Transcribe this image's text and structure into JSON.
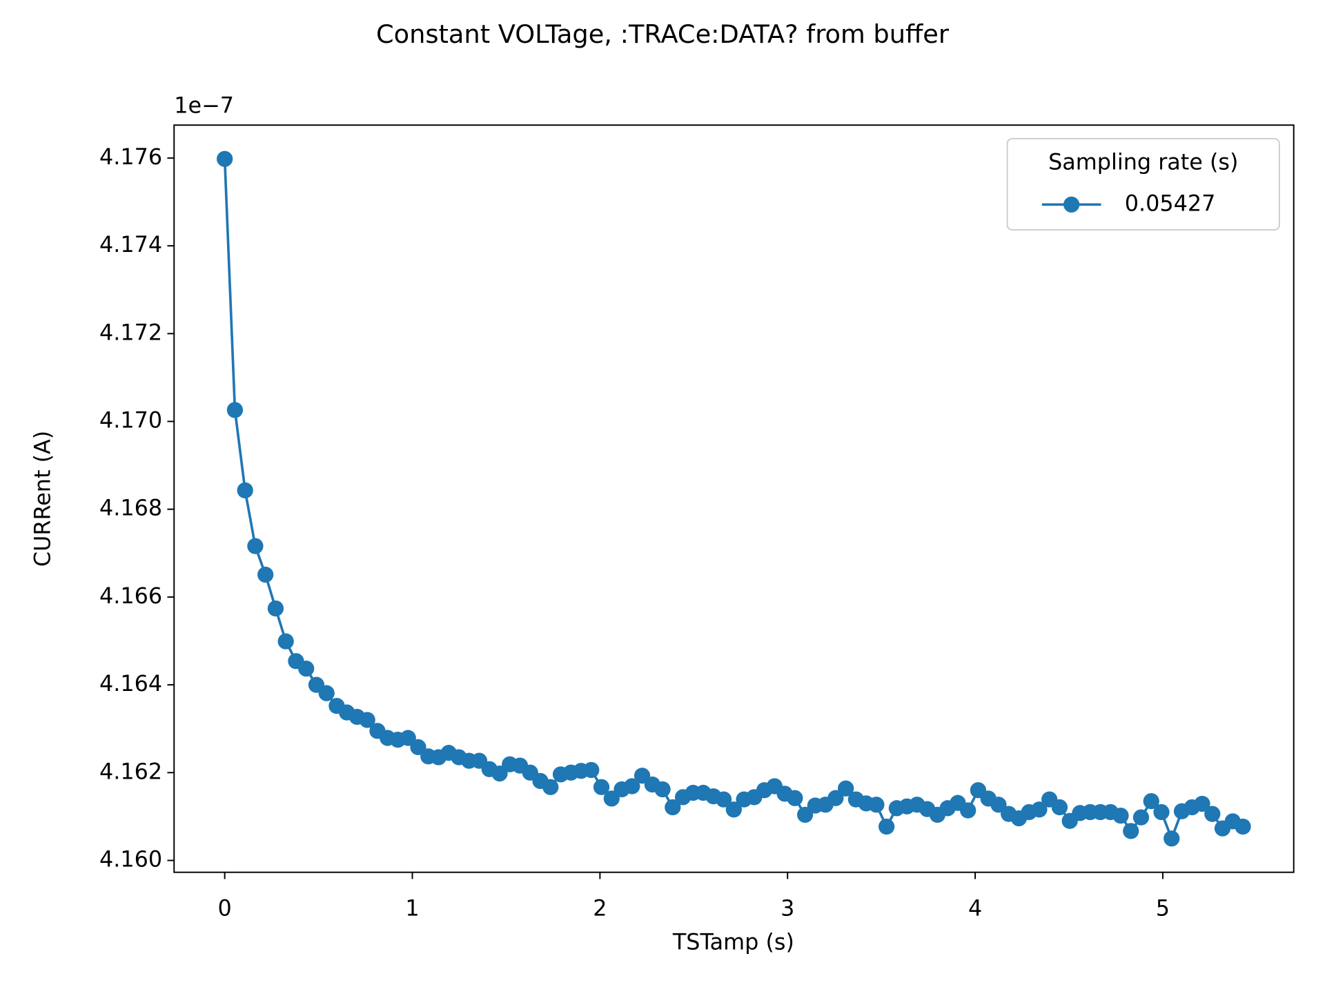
{
  "chart_data": {
    "type": "line",
    "title": "Constant VOLTage, :TRACe:DATA? from buffer",
    "x_label": "TSTamp (s)",
    "y_label": "CURRent (A)",
    "y_offset_label": "1e−7",
    "legend_title": "Sampling rate (s)",
    "legend": "upper right",
    "x": [
      0,
      0.05427,
      0.10854,
      0.16281,
      0.21708,
      0.27135,
      0.32562,
      0.37989,
      0.43416,
      0.48843,
      0.5427,
      0.59697,
      0.65124,
      0.70551,
      0.75978,
      0.81405,
      0.86832,
      0.92259,
      0.97686,
      1.03113,
      1.0854,
      1.13967,
      1.19394,
      1.24821,
      1.30248,
      1.35675,
      1.41102,
      1.46529,
      1.51956,
      1.57383,
      1.6281,
      1.68237,
      1.73664,
      1.79091,
      1.84518,
      1.89945,
      1.95372,
      2.00799,
      2.06226,
      2.11653,
      2.1708,
      2.22507,
      2.27934,
      2.33361,
      2.38788,
      2.44215,
      2.49642,
      2.55069,
      2.60496,
      2.65923,
      2.7135,
      2.76777,
      2.82204,
      2.87631,
      2.93058,
      2.98485,
      3.03912,
      3.09339,
      3.14766,
      3.20193,
      3.2562,
      3.31047,
      3.36474,
      3.41901,
      3.47328,
      3.52755,
      3.58182,
      3.63609,
      3.69036,
      3.74463,
      3.7989,
      3.85317,
      3.90744,
      3.96171,
      4.01598,
      4.07025,
      4.12452,
      4.17879,
      4.23306,
      4.28733,
      4.3416,
      4.39587,
      4.45014,
      4.50441,
      4.55868,
      4.61295,
      4.66722,
      4.72149,
      4.77576,
      4.83003,
      4.8843,
      4.93857,
      4.99284,
      5.04711,
      5.10138,
      5.15565,
      5.20992,
      5.26419,
      5.31846,
      5.37273,
      5.427
    ],
    "series": [
      {
        "name": "0.05427",
        "color": "#1f77b4",
        "values": [
          4.17598,
          4.17026,
          4.16843,
          4.16716,
          4.16651,
          4.16574,
          4.16499,
          4.16454,
          4.16437,
          4.164,
          4.16381,
          4.16352,
          4.16337,
          4.16327,
          4.1632,
          4.16295,
          4.16279,
          4.16275,
          4.16279,
          4.16258,
          4.16237,
          4.16235,
          4.16245,
          4.16235,
          4.16227,
          4.16227,
          4.16208,
          4.16198,
          4.16219,
          4.16216,
          4.162,
          4.16181,
          4.16167,
          4.16196,
          4.162,
          4.16204,
          4.16206,
          4.16167,
          4.16141,
          4.16162,
          4.16169,
          4.16193,
          4.16173,
          4.16162,
          4.16121,
          4.16144,
          4.16154,
          4.16154,
          4.16146,
          4.16139,
          4.16116,
          4.16139,
          4.16144,
          4.1616,
          4.16169,
          4.16152,
          4.16142,
          4.16104,
          4.16125,
          4.16127,
          4.16142,
          4.16164,
          4.16139,
          4.1613,
          4.16127,
          4.16077,
          4.16119,
          4.16123,
          4.16127,
          4.16117,
          4.16104,
          4.16119,
          4.16131,
          4.16114,
          4.1616,
          4.16141,
          4.16127,
          4.16106,
          4.16096,
          4.1611,
          4.16116,
          4.16139,
          4.16121,
          4.1609,
          4.16108,
          4.1611,
          4.1611,
          4.1611,
          4.16102,
          4.16067,
          4.16098,
          4.16135,
          4.1611,
          4.1605,
          4.16112,
          4.16121,
          4.16129,
          4.16106,
          4.16073,
          4.16089,
          4.16077
        ]
      }
    ],
    "xlim": [
      -0.27,
      5.698
    ],
    "xticks": [
      0,
      1,
      2,
      3,
      4,
      5
    ],
    "ylim": [
      4.15973,
      4.17675
    ],
    "yticks": [
      {
        "value": 4.16,
        "label": "4.160"
      },
      4.162,
      4.164,
      4.166,
      4.168,
      {
        "value": 4.17,
        "label": "4.170"
      },
      4.172,
      4.174,
      4.176
    ]
  }
}
